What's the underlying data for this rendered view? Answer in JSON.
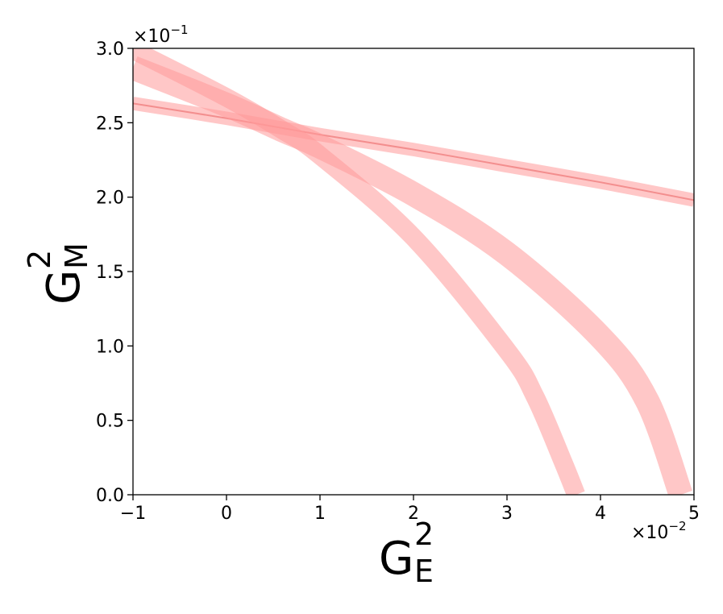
{
  "chart_data": {
    "type": "line",
    "title": "",
    "xlabel": {
      "base": "G",
      "sup": "2",
      "sub": "E"
    },
    "ylabel": {
      "base": "G",
      "sup": "2",
      "sub": "M"
    },
    "xlim": [
      -1,
      5
    ],
    "ylim": [
      0,
      3
    ],
    "x_ticks": [
      -1,
      0,
      1,
      2,
      3,
      4,
      5
    ],
    "x_tick_labels": [
      "−1",
      "0",
      "1",
      "2",
      "3",
      "4",
      "5"
    ],
    "y_ticks": [
      0,
      0.5,
      1,
      1.5,
      2,
      2.5,
      3
    ],
    "y_tick_labels": [
      "0.0",
      "0.5",
      "1.0",
      "1.5",
      "2.0",
      "2.5",
      "3.0"
    ],
    "x_multiplier": {
      "base": "×10",
      "exp": "−2"
    },
    "y_multiplier": {
      "base": "×10",
      "exp": "−1"
    },
    "grid": false,
    "band_color": "#ff9999",
    "line_color": "#f08080",
    "series": [
      {
        "x": [
          -1,
          0,
          1,
          2,
          3,
          4,
          5
        ],
        "y": [
          2.63,
          2.53,
          2.42,
          2.32,
          2.21,
          2.1,
          1.98
        ],
        "band_halfwidth": 0.045
      },
      {
        "x": [
          -1,
          0,
          0.6,
          1,
          2,
          3,
          3.3,
          3.6,
          3.74
        ],
        "y": [
          2.99,
          2.67,
          2.45,
          2.28,
          1.73,
          0.97,
          0.66,
          0.22,
          0.0
        ],
        "band_halfwidth_x": 0.1
      },
      {
        "x": [
          -1,
          0,
          0.6,
          1,
          2,
          3,
          4,
          4.5,
          4.86
        ],
        "y": [
          2.87,
          2.62,
          2.45,
          2.34,
          2.02,
          1.62,
          1.06,
          0.63,
          0.0
        ],
        "band_halfwidth_x": 0.13
      }
    ]
  }
}
